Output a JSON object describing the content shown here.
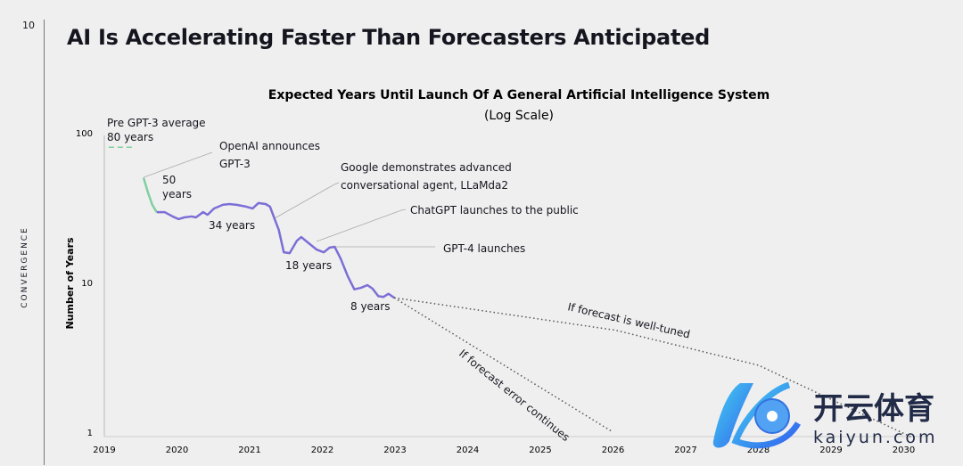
{
  "page_number": "10",
  "section_label": "CONVERGENCE",
  "slide_title": "AI Is Accelerating Faster Than Forecasters Anticipated",
  "chart_data": {
    "type": "line",
    "title": "Expected Years Until Launch Of A General Artificial Intelligence System",
    "subtitle": "(Log Scale)",
    "xlabel": "",
    "ylabel": "Number of Years",
    "yscale": "log",
    "ylim": [
      1,
      100
    ],
    "xlim": [
      2019,
      2030
    ],
    "x_ticks": [
      "2019",
      "2020",
      "2021",
      "2022",
      "2023",
      "2024",
      "2025",
      "2026",
      "2027",
      "2028",
      "2029",
      "2030"
    ],
    "y_ticks": [
      "1",
      "10",
      "100"
    ],
    "grid": false,
    "colors": {
      "pre_gpt3": "#7fcfa0",
      "forecast": "#7b6fd6",
      "projection": "#555555"
    },
    "series": [
      {
        "key": "pre_gpt3_average",
        "style": "dashed",
        "color": "#7fcfa0",
        "x": [
          2019.06,
          2019.38
        ],
        "y": [
          80,
          80
        ]
      },
      {
        "key": "post_gpt3",
        "style": "solid",
        "color": "#7fcfa0",
        "x": [
          2019.54,
          2019.6,
          2019.66,
          2019.72
        ],
        "y": [
          50,
          40,
          33,
          29.5
        ]
      },
      {
        "key": "forecast",
        "style": "solid",
        "color": "#7b6fd6",
        "x": [
          2019.72,
          2019.83,
          2019.94,
          2020.02,
          2020.1,
          2020.2,
          2020.26,
          2020.36,
          2020.42,
          2020.51,
          2020.63,
          2020.72,
          2020.82,
          2020.95,
          2021.04,
          2021.12,
          2021.22,
          2021.28,
          2021.34,
          2021.4,
          2021.47,
          2021.55,
          2021.65,
          2021.71,
          2021.8,
          2021.92,
          2022.02,
          2022.1,
          2022.17,
          2022.25,
          2022.35,
          2022.44,
          2022.53,
          2022.62,
          2022.69,
          2022.77,
          2022.84,
          2022.91,
          2022.99
        ],
        "y": [
          29.5,
          29.5,
          27.6,
          26.5,
          27.2,
          27.6,
          27.2,
          29.5,
          28.3,
          31.2,
          33.0,
          33.4,
          33.0,
          32.1,
          31.2,
          33.9,
          33.4,
          32.1,
          26.8,
          22.5,
          15.9,
          15.7,
          19.0,
          20.1,
          18.5,
          16.6,
          15.9,
          17.1,
          17.3,
          14.5,
          11.0,
          9.0,
          9.2,
          9.6,
          9.1,
          8.1,
          8.0,
          8.4,
          7.9
        ]
      },
      {
        "key": "well_tuned",
        "style": "dotted",
        "color": "#555555",
        "x": [
          2022.99,
          2026.03,
          2028.0,
          2030.1
        ],
        "y": [
          7.9,
          4.8,
          2.8,
          0.93
        ]
      },
      {
        "key": "error_continues",
        "style": "dotted",
        "color": "#555555",
        "x": [
          2022.99,
          2026.0
        ],
        "y": [
          7.9,
          1.0
        ]
      }
    ],
    "annotations": {
      "pre_gpt3": "Pre GPT-3 average",
      "pre_gpt3_value": "80 years",
      "openai_1": "OpenAI announces",
      "openai_2": "GPT-3",
      "fifty_1": "50",
      "fifty_2": "years",
      "thirtyfour": "34 years",
      "google_1": "Google demonstrates advanced",
      "google_2": "conversational agent, LLaMda2",
      "chatgpt": "ChatGPT launches to the public",
      "gpt4": "GPT-4 launches",
      "eighteen": "18 years",
      "eight": "8 years",
      "well_tuned": "If forecast is well-tuned",
      "error_continues": "If forecast error continues"
    }
  },
  "watermark": {
    "text_cn": "开云体育",
    "text_en": "kaiyun.com"
  }
}
